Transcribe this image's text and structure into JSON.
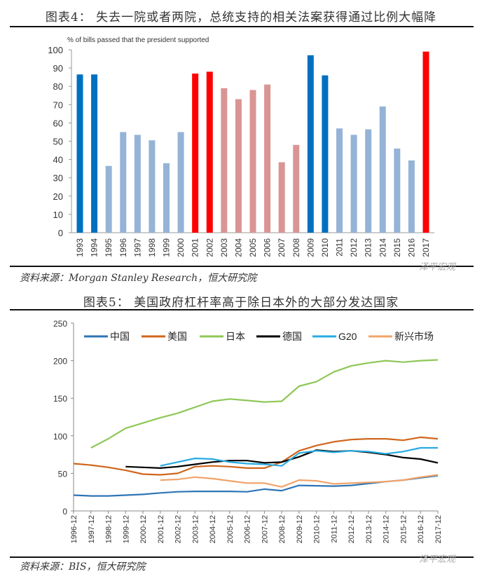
{
  "chart4": {
    "title": "图表4： 失去一院或者两院，总统支持的相关法案获得通过比例大幅降",
    "source": "资料来源：Morgan Stanley Research，恒大研究院"
  },
  "chart5": {
    "title": "图表5： 美国政府杠杆率高于除日本外的大部分发达国家",
    "source": "资料来源：BIS，恒大研究院"
  },
  "watermark": "泽平宏观",
  "chart_data": [
    {
      "type": "bar",
      "ylabel": "% of bills passed that the president supported",
      "ylim": [
        0,
        100
      ],
      "yticks": [
        0,
        10,
        20,
        30,
        40,
        50,
        60,
        70,
        80,
        90,
        100
      ],
      "grid": false,
      "categories": [
        "1993",
        "1994",
        "1995",
        "1996",
        "1997",
        "1998",
        "1999",
        "2000",
        "2001",
        "2002",
        "2003",
        "2004",
        "2005",
        "2006",
        "2007",
        "2008",
        "2009",
        "2010",
        "2011",
        "2012",
        "2013",
        "2014",
        "2015",
        "2016",
        "2017"
      ],
      "values": [
        86.5,
        86.5,
        36.5,
        55,
        53.5,
        50.5,
        38,
        55,
        87,
        88,
        79,
        73,
        78,
        81,
        38.5,
        48,
        97,
        86,
        57,
        53.5,
        56.5,
        69,
        46,
        39.5,
        99
      ],
      "bar_colors": [
        "#0070c0",
        "#0070c0",
        "#95b3d7",
        "#95b3d7",
        "#95b3d7",
        "#95b3d7",
        "#95b3d7",
        "#95b3d7",
        "#ff0000",
        "#ff0000",
        "#d99594",
        "#d99594",
        "#d99594",
        "#d99594",
        "#d99594",
        "#d99594",
        "#0070c0",
        "#0070c0",
        "#95b3d7",
        "#95b3d7",
        "#95b3d7",
        "#95b3d7",
        "#95b3d7",
        "#95b3d7",
        "#ff0000"
      ]
    },
    {
      "type": "line",
      "ylim": [
        0,
        250
      ],
      "yticks": [
        0,
        50,
        100,
        150,
        200,
        250
      ],
      "grid": false,
      "legend": "top",
      "x": [
        "1996-12",
        "1997-12",
        "1998-12",
        "1999-12",
        "2000-12",
        "2001-12",
        "2002-12",
        "2003-12",
        "2004-12",
        "2005-12",
        "2006-12",
        "2007-12",
        "2008-12",
        "2009-12",
        "2010-12",
        "2011-12",
        "2012-12",
        "2013-12",
        "2014-12",
        "2015-12",
        "2016-12",
        "2017-12"
      ],
      "series": [
        {
          "name": "中国",
          "color": "#2e75b6",
          "values": [
            21,
            20,
            20,
            21,
            22,
            24,
            25.5,
            26,
            26,
            26,
            25.5,
            29,
            27,
            34,
            33.5,
            33,
            34,
            36.5,
            39,
            41,
            44,
            47
          ]
        },
        {
          "name": "美国",
          "color": "#d0661c",
          "values": [
            63,
            61,
            58,
            54,
            49,
            48,
            50,
            59,
            60,
            59,
            57,
            57,
            65,
            80,
            87,
            92,
            95,
            96,
            96,
            94,
            98,
            96
          ]
        },
        {
          "name": "日本",
          "color": "#8fc757",
          "values": [
            null,
            84,
            96,
            110,
            117,
            124,
            130,
            138,
            146,
            149,
            147,
            145,
            146,
            166,
            172,
            185,
            193,
            197,
            200,
            198,
            200,
            201
          ]
        },
        {
          "name": "德国",
          "color": "#000000",
          "values": [
            null,
            null,
            null,
            59,
            58,
            57,
            59,
            62,
            65,
            67,
            67,
            64,
            65,
            72,
            81,
            79,
            80,
            78,
            75,
            71,
            69,
            64
          ]
        },
        {
          "name": "G20",
          "color": "#29abe2",
          "values": [
            null,
            null,
            null,
            null,
            null,
            60,
            65,
            70,
            69,
            65,
            63,
            62,
            60,
            77,
            80,
            78,
            80,
            79,
            76,
            79,
            84,
            84
          ]
        },
        {
          "name": "新兴市场",
          "color": "#f0a46a",
          "values": [
            null,
            null,
            null,
            null,
            null,
            41,
            42,
            45,
            43,
            40,
            37,
            37,
            32,
            41,
            40,
            36,
            37,
            38,
            39,
            41,
            45,
            48
          ]
        }
      ]
    }
  ]
}
